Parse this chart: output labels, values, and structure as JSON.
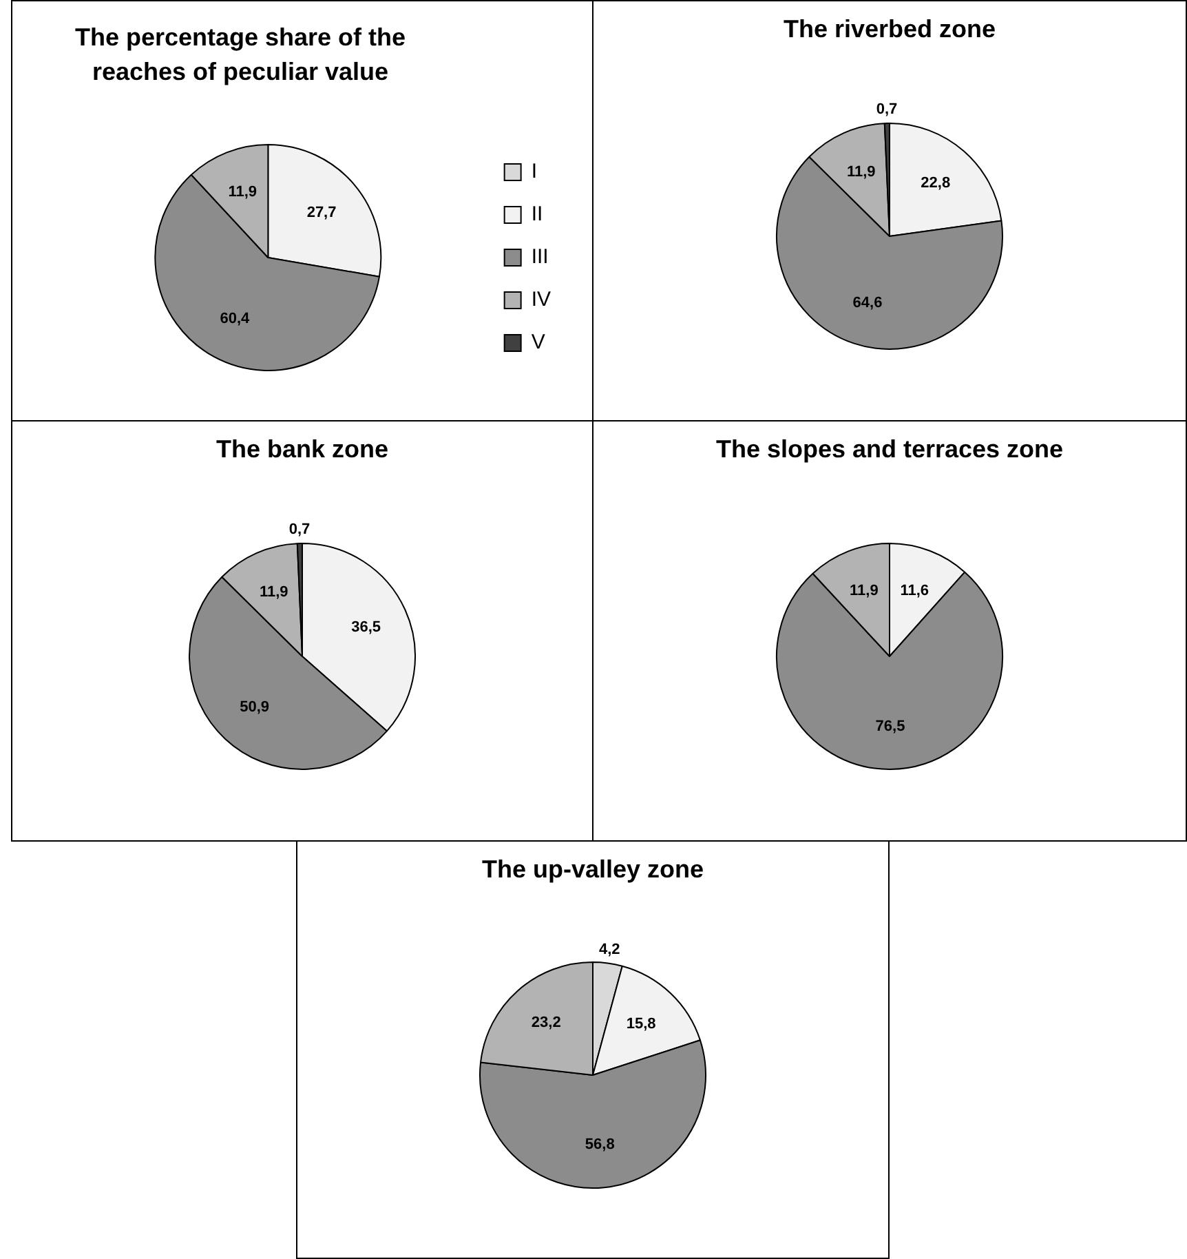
{
  "chart_data": [
    {
      "type": "pie",
      "title": "The percentage share of the reaches of peculiar value",
      "categories": [
        "I",
        "II",
        "III",
        "IV",
        "V"
      ],
      "values": [
        0,
        27.7,
        60.4,
        11.9,
        0
      ],
      "value_labels": [
        null,
        "27,7",
        "60,4",
        "11,9",
        null
      ],
      "colors": [
        "#d9d9d9",
        "#f2f2f2",
        "#8c8c8c",
        "#b3b3b3",
        "#404040"
      ],
      "legend": "right"
    },
    {
      "type": "pie",
      "title": "The riverbed zone",
      "categories": [
        null,
        null,
        null,
        null,
        null
      ],
      "values": [
        0,
        22.8,
        64.6,
        11.9,
        0.7
      ],
      "value_labels": [
        null,
        "22,8",
        "64,6",
        "11,9",
        "0,7"
      ],
      "colors": [
        "#d9d9d9",
        "#f2f2f2",
        "#8c8c8c",
        "#b3b3b3",
        "#404040"
      ]
    },
    {
      "type": "pie",
      "title": "The bank zone",
      "categories": [
        null,
        null,
        null,
        null,
        null
      ],
      "values": [
        0,
        36.5,
        50.9,
        11.9,
        0.7
      ],
      "value_labels": [
        null,
        "36,5",
        "50,9",
        "11,9",
        "0,7"
      ],
      "colors": [
        "#d9d9d9",
        "#f2f2f2",
        "#8c8c8c",
        "#b3b3b3",
        "#404040"
      ]
    },
    {
      "type": "pie",
      "title": "The slopes and terraces zone",
      "categories": [
        null,
        null,
        null,
        null,
        null
      ],
      "values": [
        0,
        11.6,
        76.5,
        11.9,
        0
      ],
      "value_labels": [
        null,
        "11,6",
        "76,5",
        "11,9",
        null
      ],
      "colors": [
        "#d9d9d9",
        "#f2f2f2",
        "#8c8c8c",
        "#b3b3b3",
        "#404040"
      ]
    },
    {
      "type": "pie",
      "title": "The up-valley zone",
      "categories": [
        null,
        null,
        null,
        null,
        null
      ],
      "values": [
        4.2,
        15.8,
        56.8,
        23.2,
        0
      ],
      "value_labels": [
        "4,2",
        "15,8",
        "56,8",
        "23,2",
        null
      ],
      "colors": [
        "#d9d9d9",
        "#f2f2f2",
        "#8c8c8c",
        "#b3b3b3",
        "#404040"
      ]
    }
  ]
}
